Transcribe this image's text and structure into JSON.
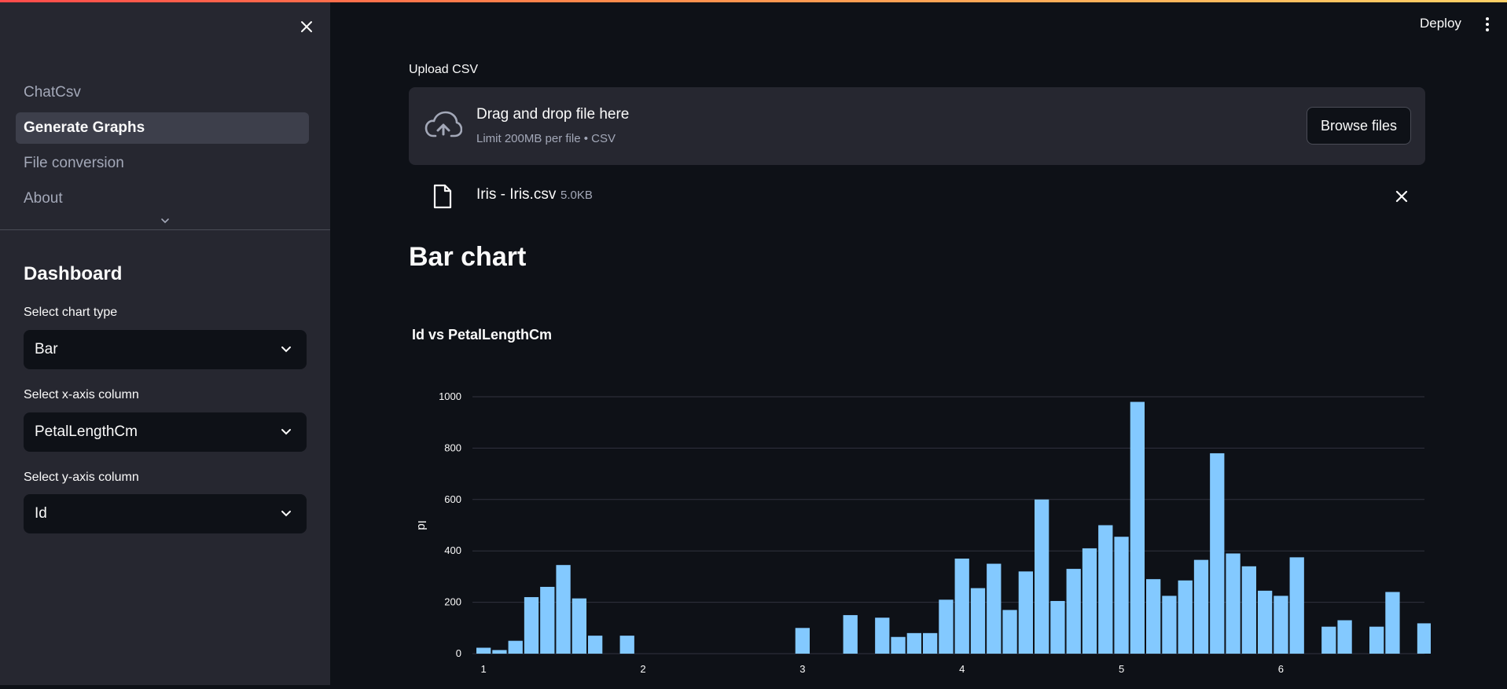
{
  "sidebar": {
    "nav": [
      {
        "label": "ChatCsv",
        "active": false
      },
      {
        "label": "Generate Graphs",
        "active": true
      },
      {
        "label": "File conversion",
        "active": false
      },
      {
        "label": "About",
        "active": false
      }
    ],
    "dashboard_title": "Dashboard",
    "chart_type": {
      "label": "Select chart type",
      "value": "Bar"
    },
    "x_axis": {
      "label": "Select x-axis column",
      "value": "PetalLengthCm"
    },
    "y_axis": {
      "label": "Select y-axis column",
      "value": "Id"
    }
  },
  "header": {
    "deploy_label": "Deploy"
  },
  "upload": {
    "label": "Upload CSV",
    "drop_title": "Drag and drop file here",
    "drop_sub": "Limit 200MB per file • CSV",
    "browse_label": "Browse files",
    "file_name": "Iris - Iris.csv",
    "file_size": "5.0KB"
  },
  "page_title": "Bar chart",
  "colors": {
    "bar": "#83c9ff",
    "sidebar_bg": "#262730",
    "main_bg": "#0e1117",
    "accent": "#ff4b4b"
  },
  "icons": {
    "close": "close-icon",
    "cloud": "cloud-upload-icon",
    "file": "file-icon",
    "chevron": "chevron-down-icon",
    "menu": "kebab-menu-icon"
  },
  "chart_data": {
    "type": "bar",
    "title": "Id vs PetalLengthCm",
    "xlabel": "",
    "ylabel": "Id",
    "xlim": [
      0.95,
      6.9
    ],
    "ylim": [
      0,
      1000
    ],
    "xticks": [
      1,
      2,
      3,
      4,
      5,
      6
    ],
    "yticks": [
      0,
      200,
      400,
      600,
      800,
      1000
    ],
    "grid": true,
    "bar_width": 0.1,
    "x": [
      1.0,
      1.1,
      1.2,
      1.3,
      1.4,
      1.5,
      1.6,
      1.7,
      1.9,
      3.0,
      3.3,
      3.5,
      3.6,
      3.7,
      3.8,
      3.9,
      4.0,
      4.1,
      4.2,
      4.3,
      4.4,
      4.5,
      4.6,
      4.7,
      4.8,
      4.9,
      5.0,
      5.1,
      5.2,
      5.3,
      5.4,
      5.5,
      5.6,
      5.7,
      5.8,
      5.9,
      6.0,
      6.1,
      6.3,
      6.4,
      6.6,
      6.7,
      6.9
    ],
    "values": [
      23,
      14,
      50,
      220,
      260,
      345,
      215,
      70,
      70,
      100,
      150,
      140,
      65,
      80,
      80,
      210,
      370,
      255,
      350,
      170,
      320,
      600,
      205,
      330,
      410,
      500,
      455,
      980,
      290,
      225,
      285,
      365,
      780,
      390,
      340,
      245,
      225,
      375,
      105,
      130,
      105,
      240,
      118
    ]
  }
}
